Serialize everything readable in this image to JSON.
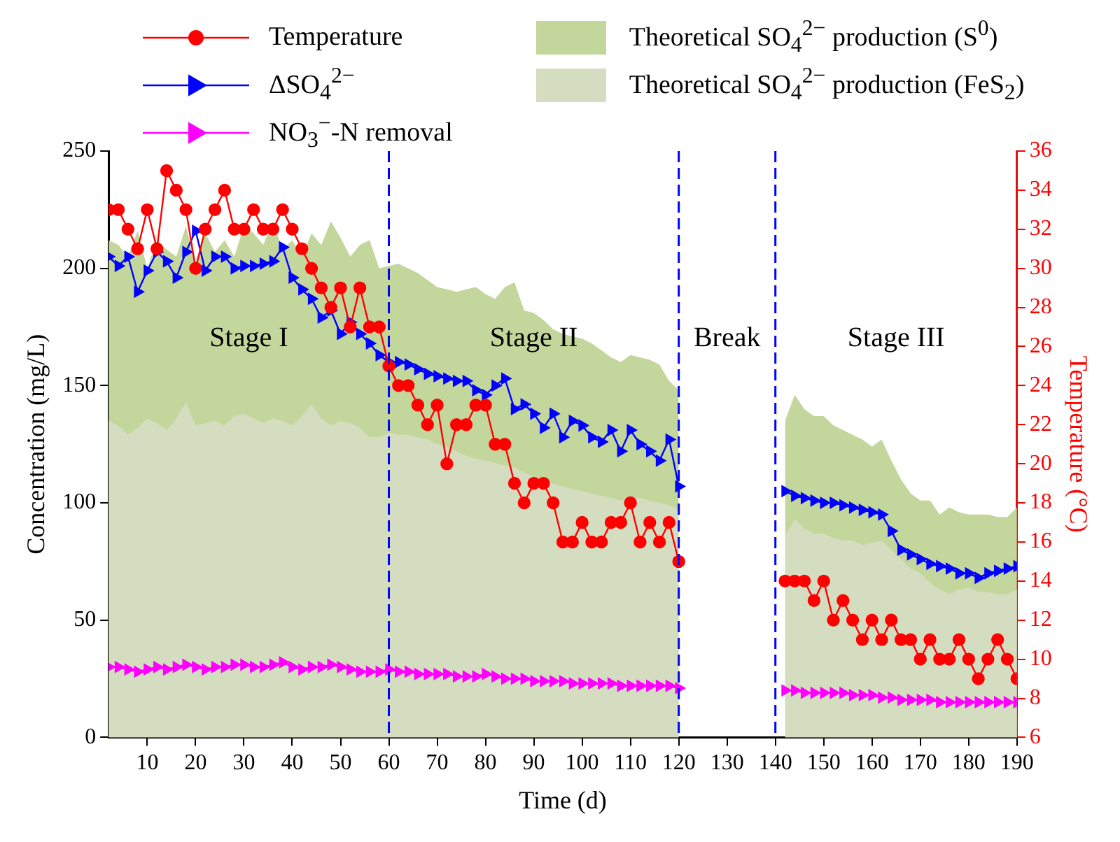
{
  "chart_data": {
    "type": "line",
    "xlabel": "Time (d)",
    "ylabel": "Concentration (mg/L)",
    "y2label": "Temperature (°C)",
    "x": [
      2,
      4,
      6,
      8,
      10,
      12,
      14,
      16,
      18,
      20,
      22,
      24,
      26,
      28,
      30,
      32,
      34,
      36,
      38,
      40,
      42,
      44,
      46,
      48,
      50,
      52,
      54,
      56,
      58,
      60,
      62,
      64,
      66,
      68,
      70,
      72,
      74,
      76,
      78,
      80,
      82,
      84,
      86,
      88,
      90,
      92,
      94,
      96,
      98,
      100,
      102,
      104,
      106,
      108,
      110,
      112,
      114,
      116,
      118,
      120,
      131,
      142,
      144,
      146,
      148,
      150,
      152,
      154,
      156,
      158,
      160,
      162,
      164,
      166,
      168,
      170,
      172,
      174,
      176,
      178,
      180,
      182,
      184,
      186,
      188,
      190
    ],
    "xlim": [
      2,
      190
    ],
    "xticks": [
      10,
      20,
      30,
      40,
      50,
      60,
      70,
      80,
      90,
      100,
      110,
      120,
      130,
      140,
      150,
      160,
      170,
      180,
      190
    ],
    "ylim": [
      0,
      250
    ],
    "yticks": [
      0,
      50,
      100,
      150,
      200,
      250
    ],
    "y2lim": [
      6,
      36
    ],
    "y2ticks": [
      6,
      8,
      10,
      12,
      14,
      16,
      18,
      20,
      22,
      24,
      26,
      28,
      30,
      32,
      34,
      36
    ],
    "legend": "top",
    "grid": false,
    "line_style": "solid",
    "series": [
      {
        "name": "Temperature",
        "axis": "y2",
        "marker": "circle",
        "color": "#ff0000",
        "values": [
          33,
          33,
          32,
          31,
          33,
          31,
          35,
          34,
          33,
          30,
          32,
          33,
          34,
          32,
          32,
          33,
          32,
          32,
          33,
          32,
          31,
          30,
          29,
          28,
          29,
          27,
          29,
          27,
          27,
          25,
          24,
          24,
          23,
          22,
          23,
          20,
          22,
          22,
          23,
          23,
          21,
          21,
          19,
          18,
          19,
          19,
          18,
          16,
          16,
          17,
          16,
          16,
          17,
          17,
          18,
          16,
          17,
          16,
          17,
          15,
          null,
          14,
          14,
          14,
          13,
          14,
          12,
          13,
          12,
          11,
          12,
          11,
          12,
          11,
          11,
          10,
          11,
          10,
          10,
          11,
          10,
          9,
          10,
          11,
          10,
          9
        ]
      },
      {
        "name": "ΔSO$_{4}$$^{2−}$",
        "axis": "y",
        "marker": "triangle",
        "color": "#0000ff",
        "values": [
          205,
          201,
          205,
          190,
          199,
          207,
          203,
          196,
          207,
          216,
          199,
          205,
          205,
          200,
          201,
          201,
          202,
          203,
          209,
          196,
          191,
          187,
          179,
          182,
          172,
          177,
          172,
          168,
          163,
          160,
          160,
          159,
          157,
          155,
          154,
          153,
          152,
          152,
          148,
          146,
          150,
          153,
          140,
          142,
          138,
          132,
          138,
          128,
          135,
          133,
          128,
          126,
          131,
          122,
          131,
          125,
          122,
          118,
          127,
          107,
          null,
          105,
          103,
          102,
          101,
          100,
          100,
          99,
          98,
          97,
          96,
          95,
          88,
          80,
          78,
          76,
          74,
          73,
          72,
          70,
          70,
          68,
          70,
          71,
          72,
          73
        ]
      },
      {
        "name": "NO$_{3}$$^{−}$-N removal",
        "axis": "y",
        "marker": "triangle",
        "color": "#ff00ff",
        "values": [
          30,
          30,
          29,
          28,
          29,
          30,
          29,
          30,
          31,
          30,
          29,
          30,
          30,
          31,
          31,
          30,
          30,
          31,
          32,
          30,
          29,
          30,
          30,
          31,
          30,
          29,
          28,
          28,
          28,
          29,
          28,
          28,
          27,
          27,
          27,
          27,
          26,
          26,
          26,
          27,
          26,
          25,
          25,
          25,
          24,
          24,
          24,
          24,
          23,
          23,
          23,
          23,
          23,
          22,
          22,
          22,
          22,
          22,
          22,
          21,
          null,
          20,
          20,
          19,
          19,
          19,
          19,
          19,
          18,
          18,
          18,
          17,
          17,
          16,
          16,
          16,
          16,
          15,
          15,
          15,
          15,
          15,
          15,
          15,
          15,
          15
        ]
      },
      {
        "name": "Theoretical SO$_{4}$$^{2−}$ production (S$^{0}$)",
        "type": "area",
        "axis": "y",
        "marker": "none",
        "color": "#c3d69b",
        "values": [
          212,
          210,
          205,
          216,
          200,
          212,
          208,
          205,
          218,
          202,
          215,
          207,
          212,
          205,
          218,
          215,
          210,
          220,
          208,
          212,
          205,
          215,
          210,
          220,
          213,
          205,
          210,
          212,
          200,
          201,
          202,
          200,
          198,
          195,
          192,
          191,
          190,
          191,
          192,
          189,
          187,
          192,
          194,
          182,
          181,
          178,
          174,
          172,
          171,
          170,
          168,
          165,
          162,
          160,
          163,
          162,
          161,
          159,
          152,
          148,
          null,
          135,
          146,
          140,
          137,
          137,
          133,
          131,
          129,
          127,
          124,
          127,
          118,
          110,
          104,
          101,
          101,
          95,
          98,
          96,
          95,
          95,
          95,
          94,
          94,
          98
        ]
      },
      {
        "name": "Theoretical SO$_{4}$$^{2−}$ production (FeS$_{2}$)",
        "type": "area",
        "axis": "y",
        "marker": "none",
        "color": "#d5ddc0",
        "values": [
          135,
          133,
          129,
          132,
          136,
          134,
          131,
          136,
          143,
          133,
          134,
          135,
          133,
          137,
          138,
          136,
          134,
          136,
          135,
          133,
          137,
          142,
          136,
          133,
          135,
          134,
          132,
          128,
          128,
          130,
          129,
          129,
          128,
          127,
          125,
          124,
          122,
          120,
          119,
          118,
          117,
          116,
          115,
          113,
          111,
          110,
          108,
          107,
          106,
          105,
          104,
          103,
          102,
          101,
          102,
          102,
          101,
          100,
          99,
          97,
          null,
          86,
          93,
          89,
          87,
          87,
          85,
          84,
          84,
          82,
          83,
          84,
          80,
          76,
          72,
          70,
          66,
          63,
          61,
          63,
          64,
          62,
          62,
          61,
          61,
          63
        ]
      }
    ],
    "ref_lines": [
      {
        "axis": "x",
        "value": 60,
        "color": "#0000ff",
        "line_style": "dashed"
      },
      {
        "axis": "x",
        "value": 120,
        "color": "#0000ff",
        "line_style": "dashed"
      },
      {
        "axis": "x",
        "value": 140,
        "color": "#0000ff",
        "line_style": "dashed"
      }
    ],
    "annotations": [
      "Stage I",
      "Stage II",
      "Break",
      "Stage III"
    ]
  }
}
